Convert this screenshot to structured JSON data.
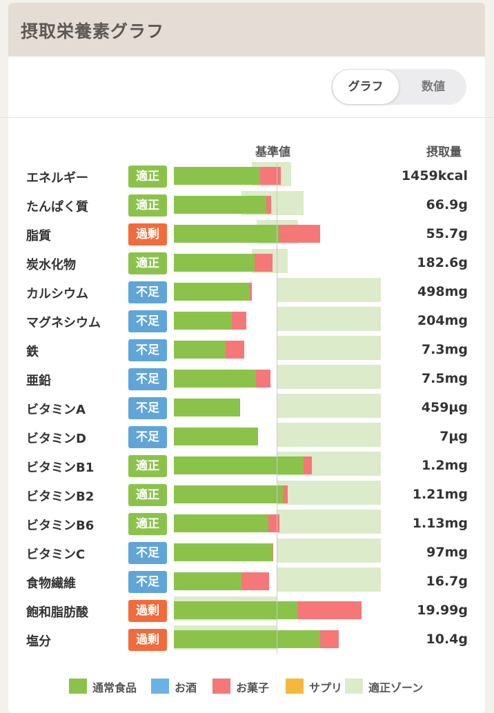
{
  "header": {
    "title": "摂取栄養素グラフ"
  },
  "toggle": {
    "graph_label": "グラフ",
    "value_label": "数値",
    "selected": "グラフ"
  },
  "columns": {
    "reference": "基準値",
    "intake": "摂取量"
  },
  "status_colors": {
    "適正": "#8bc34a",
    "過剰": "#f26b3a",
    "不足": "#5fa5d8"
  },
  "legend": [
    {
      "label": "通常食品",
      "color": "#8bc34a"
    },
    {
      "label": "お酒",
      "color": "#6bb2e3"
    },
    {
      "label": "お菓子",
      "color": "#f57777"
    },
    {
      "label": "サプリ",
      "color": "#f5b83d"
    },
    {
      "label": "適正ゾーン",
      "color": "#dcebca"
    }
  ],
  "chart_data": {
    "type": "bar",
    "reference_label": "基準値",
    "categories": [
      "エネルギー",
      "たんぱく質",
      "脂質",
      "炭水化物",
      "カルシウム",
      "マグネシウム",
      "鉄",
      "亜鉛",
      "ビタミンA",
      "ビタミンD",
      "ビタミンB1",
      "ビタミンB2",
      "ビタミンB6",
      "ビタミンC",
      "食物繊維",
      "飽和脂肪酸",
      "塩分"
    ],
    "statuses": [
      "適正",
      "適正",
      "過剰",
      "適正",
      "不足",
      "不足",
      "不足",
      "不足",
      "不足",
      "不足",
      "適正",
      "適正",
      "適正",
      "不足",
      "不足",
      "過剰",
      "過剰"
    ],
    "intake_labels": [
      "1459kcal",
      "66.9g",
      "55.7g",
      "182.6g",
      "498mg",
      "204mg",
      "7.3mg",
      "7.5mg",
      "459µg",
      "7µg",
      "1.2mg",
      "1.21mg",
      "1.13mg",
      "97mg",
      "16.7g",
      "19.99g",
      "10.4g"
    ],
    "series": [
      {
        "name": "通常食品",
        "values": [
          0.83,
          0.89,
          1.01,
          0.78,
          0.73,
          0.56,
          0.5,
          0.79,
          0.63,
          0.81,
          1.25,
          1.05,
          0.91,
          0.95,
          0.65,
          1.19,
          1.41
        ]
      },
      {
        "name": "お菓子",
        "values": [
          0.2,
          0.05,
          0.4,
          0.17,
          0.02,
          0.14,
          0.18,
          0.14,
          0.01,
          0.0,
          0.08,
          0.05,
          0.11,
          0.01,
          0.27,
          0.62,
          0.18
        ]
      }
    ],
    "zones": [
      [
        0.75,
        1.13
      ],
      [
        0.65,
        1.25
      ],
      [
        0.8,
        1.2
      ],
      [
        0.75,
        1.1
      ],
      [
        1.0,
        2.0
      ],
      [
        1.0,
        2.0
      ],
      [
        1.0,
        2.0
      ],
      [
        1.0,
        2.0
      ],
      [
        1.0,
        2.0
      ],
      [
        1.0,
        2.0
      ],
      [
        1.0,
        2.0
      ],
      [
        1.0,
        2.0
      ],
      [
        1.0,
        2.0
      ],
      [
        1.0,
        2.0
      ],
      [
        1.0,
        2.0
      ],
      [
        0.0,
        1.0
      ],
      [
        0.0,
        1.0
      ]
    ]
  }
}
